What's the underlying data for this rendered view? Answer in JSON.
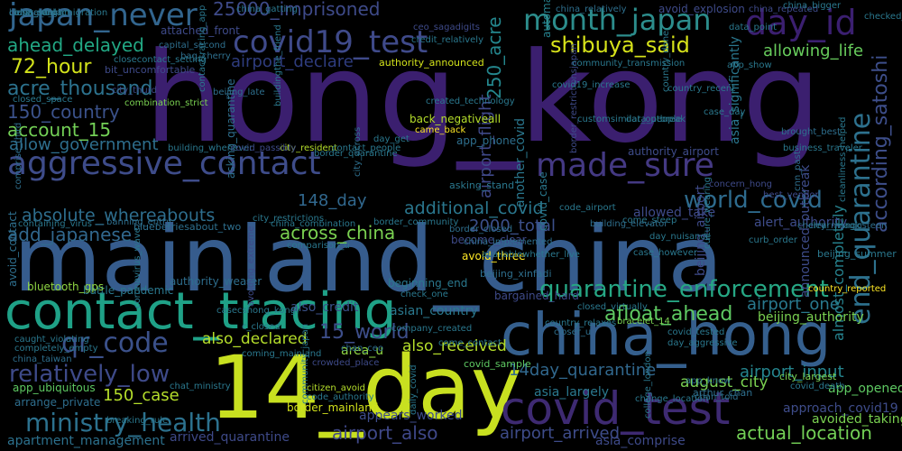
{
  "background_color": "#000000",
  "words": [
    {
      "text": "hong_kong",
      "color": "#3b1f6f"
    },
    {
      "text": "mainland_china",
      "color": "#365c8d"
    },
    {
      "text": "contact_tracing",
      "color": "#1fa187"
    },
    {
      "text": "14_day",
      "color": "#c8e020"
    },
    {
      "text": "china_hong",
      "color": "#355f8d"
    },
    {
      "text": "covid_test",
      "color": "#3e2a72"
    },
    {
      "text": "japan_never",
      "color": "#32658e"
    },
    {
      "text": "covid19_test",
      "color": "#3f4a8a"
    },
    {
      "text": "month_japan",
      "color": "#2c8d8c"
    },
    {
      "text": "day_id",
      "color": "#3b1f70"
    },
    {
      "text": "shibuya_said",
      "color": "#d6e21a"
    },
    {
      "text": "aggressive_contact",
      "color": "#3e4c8a"
    },
    {
      "text": "made_sure",
      "color": "#443983"
    },
    {
      "text": "end_quarantine",
      "color": "#2d718e"
    },
    {
      "text": "according_satoshi",
      "color": "#3d4e8a"
    },
    {
      "text": "ministry_health",
      "color": "#2c718e"
    },
    {
      "text": "quarantine_enforcement",
      "color": "#26a784"
    },
    {
      "text": "qr_code",
      "color": "#3b518b"
    },
    {
      "text": "relatively_low",
      "color": "#3e4a89"
    },
    {
      "text": "world_covid",
      "color": "#2e6b8e"
    },
    {
      "text": "absolute_whereabouts",
      "color": "#2e6e8e"
    },
    {
      "text": "add_japanese",
      "color": "#31688e"
    },
    {
      "text": "across_china",
      "color": "#7ad151"
    },
    {
      "text": "148_day",
      "color": "#31688e"
    },
    {
      "text": "additional_covid",
      "color": "#2a778e"
    },
    {
      "text": "2000_total",
      "color": "#3c508b"
    },
    {
      "text": "afloat_ahead",
      "color": "#5ec962"
    },
    {
      "text": "ahead_delayed",
      "color": "#22a884"
    },
    {
      "text": "acre_thousand",
      "color": "#2c728e"
    },
    {
      "text": "150_country",
      "color": "#3b528b"
    },
    {
      "text": "account_15",
      "color": "#73d056"
    },
    {
      "text": "72_hour",
      "color": "#d2e21b"
    },
    {
      "text": "250_acre",
      "color": "#24878e"
    },
    {
      "text": "25000_imprisoned",
      "color": "#3e4a89"
    },
    {
      "text": "airport_flight",
      "color": "#3f4889"
    },
    {
      "text": "airport_declare",
      "color": "#2e3c7e"
    },
    {
      "text": "allow_government",
      "color": "#2e6f8e"
    },
    {
      "text": "allowing_life",
      "color": "#67cc5c"
    },
    {
      "text": "airport_arrived",
      "color": "#3e4c8a"
    },
    {
      "text": "actual_location",
      "color": "#73d056"
    },
    {
      "text": "airport_one",
      "color": "#29798e"
    },
    {
      "text": "airport_input",
      "color": "#25858e"
    },
    {
      "text": "airport_also",
      "color": "#3f4889"
    },
    {
      "text": "also_declared",
      "color": "#b5de2b"
    },
    {
      "text": "also_received",
      "color": "#b5de2b"
    },
    {
      "text": "15_world",
      "color": "#3d4e8a"
    },
    {
      "text": "150_case",
      "color": "#b5de2b"
    },
    {
      "text": "14day_quarantine",
      "color": "#31688e"
    },
    {
      "text": "august_city",
      "color": "#7ad151"
    },
    {
      "text": "almost_completely",
      "color": "#26828e"
    },
    {
      "text": "app_ubiquitous",
      "color": "#5ec962"
    },
    {
      "text": "arrange_private",
      "color": "#2e6e8e"
    },
    {
      "text": "approach_covid19",
      "color": "#3e4c8a"
    },
    {
      "text": "alert_authority",
      "color": "#3e4c8a"
    },
    {
      "text": "announced_outbreak",
      "color": "#3e4c8a"
    },
    {
      "text": "allowed_take",
      "color": "#3e4a89"
    },
    {
      "text": "also_credit",
      "color": "#3b528b"
    },
    {
      "text": "beijing_authority",
      "color": "#7ad151"
    },
    {
      "text": "asia_largely",
      "color": "#2a788e"
    },
    {
      "text": "appears_worked",
      "color": "#3e4c8a"
    },
    {
      "text": "area_u",
      "color": "#90d743"
    },
    {
      "text": "asian_country",
      "color": "#2a788e"
    },
    {
      "text": "authority_wearer",
      "color": "#2e6e8e"
    },
    {
      "text": "battle_pandemic",
      "color": "#2a788e"
    },
    {
      "text": "app_opened",
      "color": "#5ec962"
    },
    {
      "text": "avoided_taking",
      "color": "#7ad151"
    },
    {
      "text": "apartment_management",
      "color": "#2c718e"
    },
    {
      "text": "arrived_quarantine",
      "color": "#3e4a89"
    },
    {
      "text": "asia_comprise",
      "color": "#3e4a89"
    },
    {
      "text": "another_covid",
      "color": "#2a778e"
    },
    {
      "text": "asia_significantly",
      "color": "#2a778e"
    },
    {
      "text": "automated_yesorno",
      "color": "#26828e"
    },
    {
      "text": "avoid_explosion",
      "color": "#3e4a89"
    },
    {
      "text": "attached_front",
      "color": "#3e4a89"
    },
    {
      "text": "asking_quarantine",
      "color": "#2e6f8e"
    },
    {
      "text": "authority_announced",
      "color": "#d2e21b"
    },
    {
      "text": "back_negativeall",
      "color": "#b5de2b"
    },
    {
      "text": "app_phone",
      "color": "#2e6f8e"
    },
    {
      "text": "authority_airport",
      "color": "#3e4c8a"
    },
    {
      "text": "border_mainland",
      "color": "#d2e21b"
    },
    {
      "text": "avoid_three",
      "color": "#fde725"
    },
    {
      "text": "beijing_xinfadi",
      "color": "#2e6f8e"
    },
    {
      "text": "bargained_hard",
      "color": "#3e4a89"
    },
    {
      "text": "beginning_end",
      "color": "#2a788e"
    },
    {
      "text": "covid_case",
      "color": "#2a788e"
    },
    {
      "text": "become_clear",
      "color": "#3e4a89"
    },
    {
      "text": "border_closed",
      "color": "#2e6f8e"
    },
    {
      "text": "code_airport",
      "color": "#2a788e"
    },
    {
      "text": "beijing_summer",
      "color": "#2a788e"
    },
    {
      "text": "beijing_airport",
      "color": "#3e4a89"
    },
    {
      "text": "arthur_chan",
      "color": "#2e6f8e"
    },
    {
      "text": "cherry_mangosteen",
      "color": "#2e6f8e"
    },
    {
      "text": "blueberriesabout_two",
      "color": "#2e6f8e"
    },
    {
      "text": "asking_stand",
      "color": "#2a788e"
    },
    {
      "text": "app_know",
      "color": "#2e6f8e"
    },
    {
      "text": "city_largest",
      "color": "#7ad151"
    },
    {
      "text": "covid_sample",
      "color": "#5ec962"
    },
    {
      "text": "bluetooth_gps",
      "color": "#90d743"
    },
    {
      "text": "avoid_contact",
      "color": "#2e6f8e"
    },
    {
      "text": "app_show",
      "color": "#2a788e"
    },
    {
      "text": "bit_uncomfortable",
      "color": "#3e4a89"
    },
    {
      "text": "bag_cherry",
      "color": "#2e6f8e"
    },
    {
      "text": "city_resident",
      "color": "#b5de2b"
    },
    {
      "text": "come_steep",
      "color": "#2a788e"
    },
    {
      "text": "came_back",
      "color": "#fde725"
    },
    {
      "text": "city_across",
      "color": "#2e6f8e"
    },
    {
      "text": "border_restrictionsjapan",
      "color": "#3e4a89"
    },
    {
      "text": "community_transmission",
      "color": "#2a788e"
    },
    {
      "text": "country_recent",
      "color": "#2a788e"
    },
    {
      "text": "china_repeated",
      "color": "#3e4a89"
    },
    {
      "text": "china_relatively",
      "color": "#2e6f8e"
    },
    {
      "text": "checked_temperature",
      "color": "#2a788e"
    },
    {
      "text": "closecontact_setting",
      "color": "#2a788e"
    },
    {
      "text": "city_thurd",
      "color": "#3e4a89"
    },
    {
      "text": "closed_space",
      "color": "#2a788e"
    },
    {
      "text": "combination_strict",
      "color": "#7ad151"
    },
    {
      "text": "china_gatting",
      "color": "#2a788e"
    },
    {
      "text": "capital_second",
      "color": "#2e6f8e"
    },
    {
      "text": "ceo_sagadigits",
      "color": "#3e4a89"
    },
    {
      "text": "building_whenever",
      "color": "#2a788e"
    },
    {
      "text": "covid_passibly",
      "color": "#3e4a89"
    },
    {
      "text": "contact_people",
      "color": "#2a788e"
    },
    {
      "text": "business_traveler",
      "color": "#2a788e"
    },
    {
      "text": "best_vendor",
      "color": "#3e4a89"
    },
    {
      "text": "cnn_past",
      "color": "#2e6f8e"
    },
    {
      "text": "clear_magic",
      "color": "#2a788e"
    },
    {
      "text": "comprise_third",
      "color": "#2e6f8e"
    },
    {
      "text": "day_nuisance",
      "color": "#2a788e"
    },
    {
      "text": "banning_entry",
      "color": "#2e6f8e"
    },
    {
      "text": "china_combination",
      "color": "#2a788e"
    },
    {
      "text": "building_elevator",
      "color": "#2e6f8e"
    },
    {
      "text": "border_community",
      "color": "#2a788e"
    },
    {
      "text": "comparison_u",
      "color": "#2a788e"
    },
    {
      "text": "china_implemented",
      "color": "#2e6f8e"
    },
    {
      "text": "completely_empty",
      "color": "#2a788e"
    },
    {
      "text": "caught_violating",
      "color": "#2a788e"
    },
    {
      "text": "china_taiwan",
      "color": "#2e6f8e"
    },
    {
      "text": "chat_ministry",
      "color": "#2a788e"
    },
    {
      "text": "citizen_avoid",
      "color": "#b5de2b"
    },
    {
      "text": "code_authority",
      "color": "#2a788e"
    },
    {
      "text": "breaking_rule",
      "color": "#2a788e"
    },
    {
      "text": "college_london",
      "color": "#2a788e"
    },
    {
      "text": "change_location",
      "color": "#2a788e"
    },
    {
      "text": "chan_told",
      "color": "#2e6f8e"
    },
    {
      "text": "covid_death",
      "color": "#2a788e"
    },
    {
      "text": "bracelet_14",
      "color": "#7ad151"
    },
    {
      "text": "covid_tested",
      "color": "#2a788e"
    },
    {
      "text": "day_aggressive",
      "color": "#2a788e"
    },
    {
      "text": "chan_ceo",
      "color": "#2e6f8e"
    },
    {
      "text": "come_contact",
      "color": "#2a788e"
    },
    {
      "text": "company_created",
      "color": "#2a788e"
    },
    {
      "text": "country_relaxes",
      "color": "#2a788e"
    },
    {
      "text": "closer_u",
      "color": "#2e6f8e"
    },
    {
      "text": "crowded_place",
      "color": "#3e4a89"
    },
    {
      "text": "check_one",
      "color": "#2a788e"
    },
    {
      "text": "casecshong_kongi",
      "color": "#2a788e"
    },
    {
      "text": "coming_mainland",
      "color": "#2a788e"
    },
    {
      "text": "c_closed",
      "color": "#2a788e"
    },
    {
      "text": "closed_virtually",
      "color": "#2a788e"
    },
    {
      "text": "case_however",
      "color": "#2a788e"
    },
    {
      "text": "concern_hong",
      "color": "#3e4a89"
    },
    {
      "text": "brought_best",
      "color": "#2e6f8e"
    },
    {
      "text": "cleanliness_helped",
      "color": "#2a788e"
    },
    {
      "text": "country_done",
      "color": "#2a788e"
    },
    {
      "text": "data_point",
      "color": "#2a788e"
    },
    {
      "text": "data_people",
      "color": "#2a788e"
    },
    {
      "text": "china_bigger",
      "color": "#2a788e"
    },
    {
      "text": "contacttracing_app",
      "color": "#2a788e"
    },
    {
      "text": "beijing_late",
      "color": "#2e6f8e"
    },
    {
      "text": "buildingthe_friend",
      "color": "#2a788e"
    },
    {
      "text": "created_technology",
      "color": "#2a788e"
    },
    {
      "text": "customsimilar_outbreak",
      "color": "#2a788e"
    },
    {
      "text": "culture_wearing",
      "color": "#2a788e"
    },
    {
      "text": "daily_covid",
      "color": "#2a788e"
    },
    {
      "text": "community_japan",
      "color": "#2a788e"
    },
    {
      "text": "coronavirus_wave",
      "color": "#2a788e"
    },
    {
      "text": "country_reported",
      "color": "#fde725"
    },
    {
      "text": "containing_virus",
      "color": "#2a788e"
    },
    {
      "text": "credit_relatively",
      "color": "#2a788e"
    },
    {
      "text": "covid19_increase",
      "color": "#2a788e"
    },
    {
      "text": "curb_order",
      "color": "#2a788e"
    },
    {
      "text": "day_get",
      "color": "#2a788e"
    },
    {
      "text": "availablewhether_live",
      "color": "#2a788e"
    },
    {
      "text": "avoiding_extreme",
      "color": "#3e4a89"
    },
    {
      "text": "city_restrictions",
      "color": "#2a788e"
    },
    {
      "text": "border_quarantine",
      "color": "#2a788e"
    },
    {
      "text": "case_day",
      "color": "#2a788e"
    },
    {
      "text": "constant_immigration",
      "color": "#2a788e"
    },
    {
      "text": "close_contact",
      "color": "#2a788e"
    },
    {
      "text": "china_said",
      "color": "#2a788e"
    },
    {
      "text": "beijing_high",
      "color": "#2e6f8e"
    }
  ]
}
